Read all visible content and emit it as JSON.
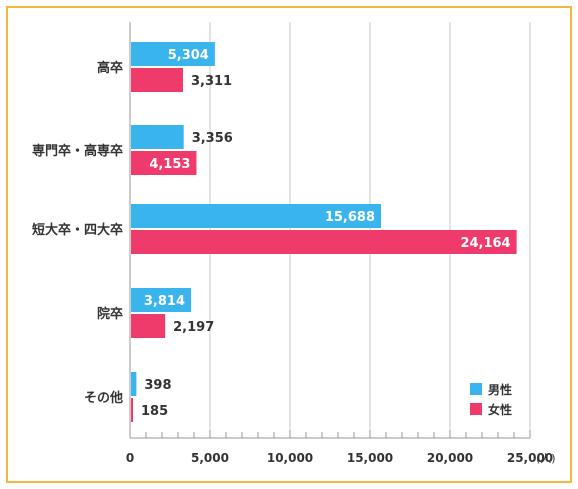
{
  "chart_data": {
    "type": "bar",
    "orientation": "horizontal",
    "categories": [
      "高卒",
      "専門卒・高専卒",
      "短大卒・四大卒",
      "院卒",
      "その他"
    ],
    "series": [
      {
        "name": "男性",
        "color": "#3ab4ec",
        "values": [
          5304,
          3356,
          15688,
          3814,
          398
        ],
        "labels": [
          "5,304",
          "3,356",
          "15,688",
          "3,814",
          "398"
        ]
      },
      {
        "name": "女性",
        "color": "#ee3b6c",
        "values": [
          3311,
          4153,
          24164,
          2197,
          185
        ],
        "labels": [
          "3,311",
          "4,153",
          "24,164",
          "2,197",
          "185"
        ]
      }
    ],
    "xlim": [
      0,
      25000
    ],
    "xticks": [
      0,
      5000,
      10000,
      15000,
      20000,
      25000
    ],
    "xtick_labels": [
      "0",
      "5,000",
      "10,000",
      "15,000",
      "20,000",
      "25,000"
    ],
    "unit": "(人)",
    "grid": true,
    "legend_position": "bottom-right"
  },
  "frame_color": "#f5b83d"
}
